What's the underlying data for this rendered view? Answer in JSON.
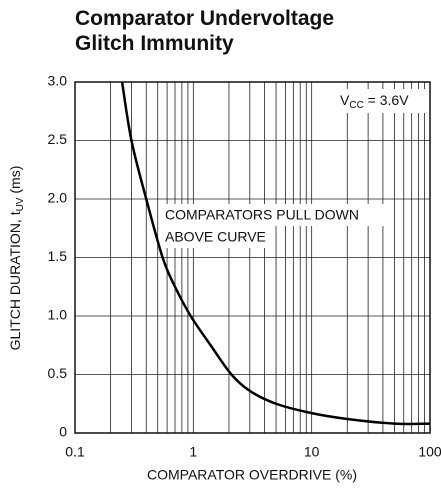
{
  "chart_data": {
    "type": "line",
    "title": [
      "Comparator Undervoltage",
      "Glitch Immunity"
    ],
    "xlabel": "COMPARATOR OVERDRIVE (%)",
    "ylabel": [
      "GLITCH DURATION, t",
      "UV",
      " (ms)"
    ],
    "annotations": [
      {
        "parts": [
          "V",
          "CC",
          " = 3.6V"
        ]
      },
      {
        "lines": [
          "COMPARATORS PULL DOWN",
          "ABOVE CURVE"
        ]
      }
    ],
    "xscale": "log",
    "xlim": [
      0.1,
      100
    ],
    "xticks": [
      0.1,
      1,
      10,
      100
    ],
    "xminor": [
      0.2,
      0.3,
      0.4,
      0.5,
      0.6,
      0.7,
      0.8,
      0.9,
      2,
      3,
      4,
      5,
      6,
      7,
      8,
      9,
      20,
      30,
      40,
      50,
      60,
      70,
      80,
      90
    ],
    "ylim": [
      0,
      3.0
    ],
    "yticks": [
      0,
      0.5,
      {
        "value": 1.0,
        "label": "1.0"
      },
      1.5,
      {
        "value": 2.0,
        "label": "2.0"
      },
      2.5,
      {
        "value": 3.0,
        "label": "3.0"
      }
    ],
    "grid": true,
    "color": "#000000",
    "x": [
      0.25,
      0.3,
      0.4,
      0.55,
      0.7,
      0.95,
      1.4,
      2.1,
      3,
      5,
      10,
      20,
      50,
      100
    ],
    "values": [
      3.0,
      2.5,
      2.0,
      1.5,
      1.25,
      1.0,
      0.75,
      0.5,
      0.36,
      0.25,
      0.17,
      0.12,
      0.08,
      0.08
    ]
  }
}
